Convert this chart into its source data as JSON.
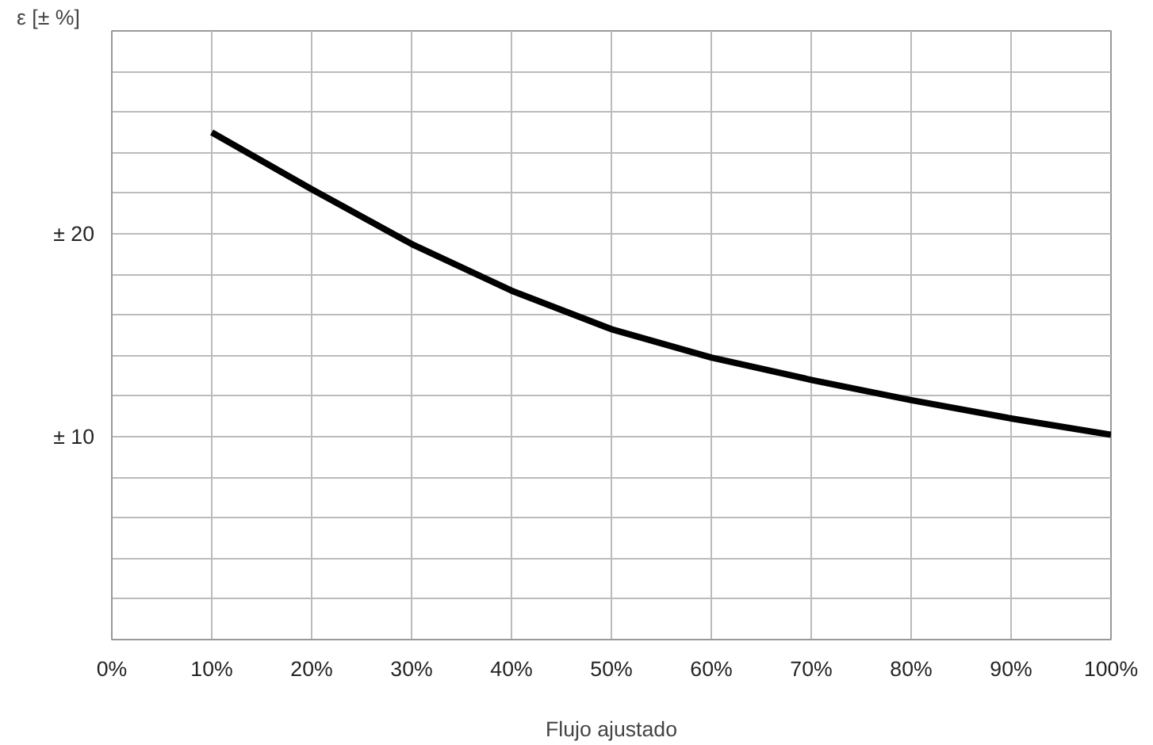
{
  "chart_data": {
    "type": "line",
    "xlabel": "Flujo ajustado",
    "ylabel": "ε [± %]",
    "x": [
      10,
      20,
      30,
      40,
      50,
      60,
      70,
      80,
      90,
      100
    ],
    "series": [
      {
        "color": "#000000",
        "values": [
          25,
          22.2,
          19.5,
          17.2,
          15.3,
          13.9,
          12.8,
          11.8,
          10.9,
          10.1
        ]
      }
    ],
    "xlim": [
      0,
      100
    ],
    "ylim": [
      0,
      30
    ],
    "xticks": [
      {
        "value": 0,
        "label": "0%"
      },
      {
        "value": 10,
        "label": "10%"
      },
      {
        "value": 20,
        "label": "20%"
      },
      {
        "value": 30,
        "label": "30%"
      },
      {
        "value": 40,
        "label": "40%"
      },
      {
        "value": 50,
        "label": "50%"
      },
      {
        "value": 60,
        "label": "60%"
      },
      {
        "value": 70,
        "label": "70%"
      },
      {
        "value": 80,
        "label": "80%"
      },
      {
        "value": 90,
        "label": "90%"
      },
      {
        "value": 100,
        "label": "100%"
      }
    ],
    "yticks": [
      {
        "value": 2,
        "label": null
      },
      {
        "value": 4,
        "label": null
      },
      {
        "value": 6,
        "label": null
      },
      {
        "value": 8,
        "label": null
      },
      {
        "value": 10,
        "label": "± 10"
      },
      {
        "value": 12,
        "label": null
      },
      {
        "value": 14,
        "label": null
      },
      {
        "value": 16,
        "label": null
      },
      {
        "value": 18,
        "label": null
      },
      {
        "value": 20,
        "label": "± 20"
      },
      {
        "value": 22,
        "label": null
      },
      {
        "value": 24,
        "label": null
      },
      {
        "value": 26,
        "label": null
      },
      {
        "value": 28,
        "label": null
      }
    ],
    "grid": true,
    "marker": "none",
    "line_style": "solid"
  }
}
